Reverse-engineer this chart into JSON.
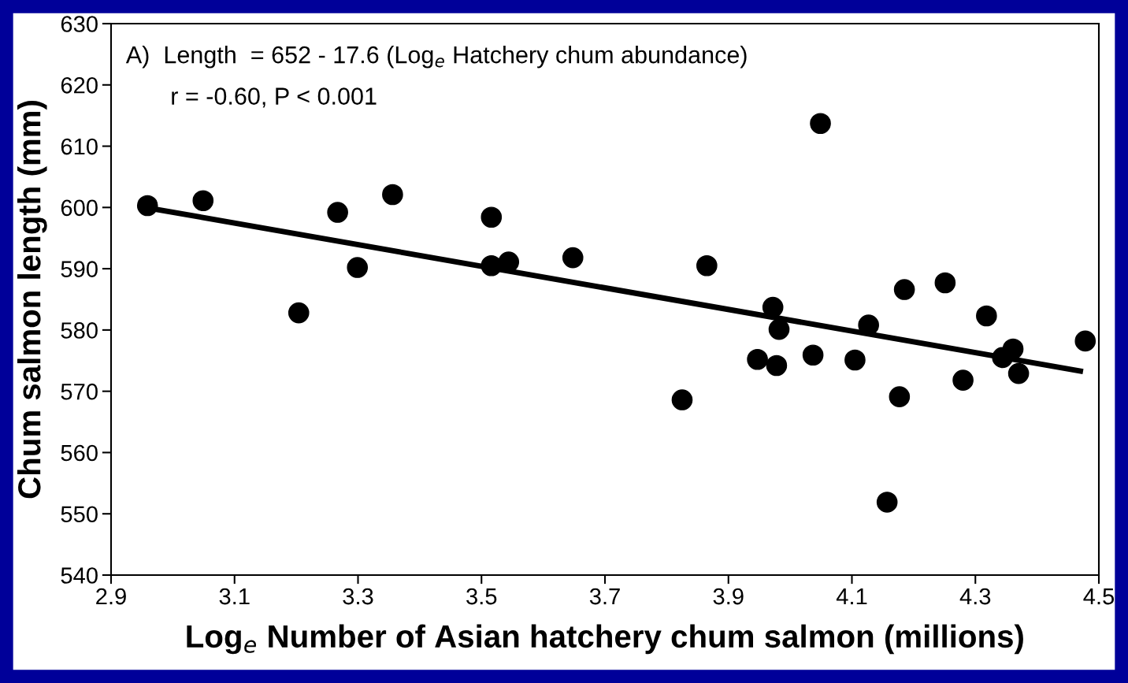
{
  "chart_data": {
    "type": "scatter",
    "xlabel": "Log$_{e}$ Number of Asian hatchery chum salmon (millions)",
    "ylabel": "Chum salmon length (mm)",
    "annotations": [
      "A)  Length  = 652 - 17.6 (Log$_{e}$ Hatchery chum abundance)",
      "r = -0.60, P < 0.001"
    ],
    "xlim": [
      2.9,
      4.5
    ],
    "ylim": [
      540,
      630
    ],
    "xticks": [
      2.9,
      3.1,
      3.3,
      3.5,
      3.7,
      3.9,
      4.1,
      4.3,
      4.5
    ],
    "yticks": [
      540,
      550,
      560,
      570,
      580,
      590,
      600,
      610,
      620,
      630
    ],
    "grid": false,
    "legend": false,
    "series": [
      {
        "marker": "circle",
        "color": "#000000",
        "x": [
          2.959,
          3.049,
          3.204,
          3.267,
          3.299,
          3.356,
          3.516,
          3.516,
          3.544,
          3.648,
          3.825,
          3.865,
          3.947,
          3.972,
          3.978,
          3.982,
          4.037,
          4.049,
          4.105,
          4.127,
          4.157,
          4.177,
          4.185,
          4.251,
          4.28,
          4.318,
          4.344,
          4.361,
          4.37,
          4.478
        ],
        "values": [
          600.3,
          601.1,
          582.8,
          599.2,
          590.2,
          602.1,
          598.4,
          590.5,
          591.1,
          591.8,
          568.6,
          590.5,
          575.2,
          583.7,
          574.2,
          580.1,
          575.9,
          613.7,
          575.1,
          580.8,
          551.9,
          569.1,
          586.6,
          587.7,
          571.8,
          582.3,
          575.5,
          576.9,
          572.9,
          578.2
        ]
      },
      {
        "type": "line",
        "marker": "none",
        "color": "#000000",
        "line_style": "solid",
        "x": [
          2.95,
          4.47
        ],
        "values": [
          600.1,
          573.3
        ]
      }
    ]
  }
}
